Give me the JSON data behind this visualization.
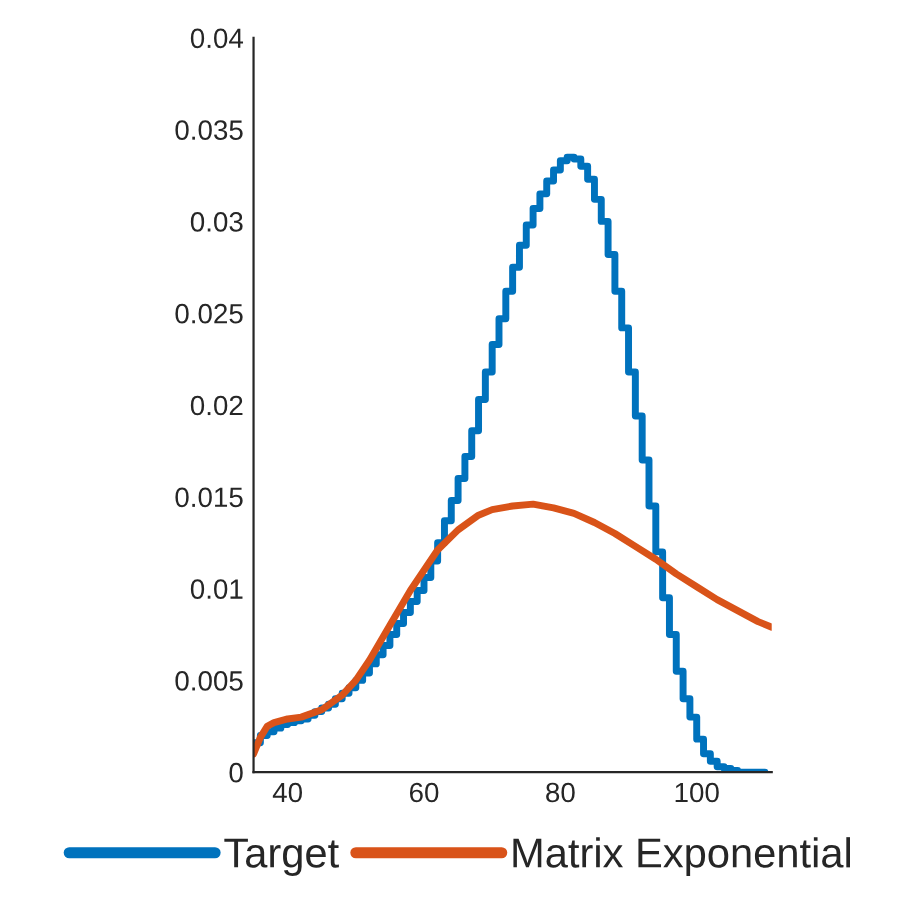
{
  "chart_data": {
    "type": "line",
    "xlim": [
      35,
      111
    ],
    "xticks": [
      40,
      60,
      80,
      100
    ],
    "ylim": [
      0,
      0.04
    ],
    "yticks": [
      0,
      0.005,
      0.01,
      0.015,
      0.02,
      0.025,
      0.03,
      0.035,
      0.04
    ],
    "grid": false,
    "legend": "bottom",
    "series": [
      {
        "name": "Target",
        "type": "step",
        "color": "#0072bd",
        "x": [
          35,
          36,
          37,
          38,
          39,
          40,
          41,
          42,
          43,
          44,
          45,
          46,
          47,
          48,
          49,
          50,
          51,
          52,
          53,
          54,
          55,
          56,
          57,
          58,
          59,
          60,
          61,
          62,
          63,
          64,
          65,
          66,
          67,
          68,
          69,
          70,
          71,
          72,
          73,
          74,
          75,
          76,
          77,
          78,
          79,
          80,
          81,
          82,
          83,
          84,
          85,
          86,
          87,
          88,
          89,
          90,
          91,
          92,
          93,
          94,
          95,
          96,
          97,
          98,
          99,
          100,
          101,
          102,
          103,
          104,
          105,
          106,
          107,
          108,
          109,
          110
        ],
        "values": [
          0.0016,
          0.002,
          0.0022,
          0.0024,
          0.0026,
          0.0027,
          0.0028,
          0.0029,
          0.0031,
          0.0033,
          0.0035,
          0.0037,
          0.004,
          0.0043,
          0.0046,
          0.005,
          0.0054,
          0.0059,
          0.0064,
          0.0069,
          0.0075,
          0.0081,
          0.0087,
          0.0093,
          0.0099,
          0.0106,
          0.0115,
          0.0125,
          0.0137,
          0.0148,
          0.016,
          0.0172,
          0.0186,
          0.0203,
          0.0218,
          0.0233,
          0.0247,
          0.0262,
          0.0275,
          0.0287,
          0.0298,
          0.0307,
          0.0315,
          0.0322,
          0.0328,
          0.0333,
          0.0335,
          0.0334,
          0.033,
          0.0323,
          0.0312,
          0.03,
          0.0282,
          0.0262,
          0.0242,
          0.0218,
          0.0194,
          0.017,
          0.0145,
          0.012,
          0.0095,
          0.0075,
          0.0055,
          0.004,
          0.003,
          0.0018,
          0.001,
          0.0006,
          0.0003,
          0.0002,
          0.0001,
          0,
          0,
          0,
          0,
          0
        ]
      },
      {
        "name": "Matrix Exponential",
        "color": "#d95319",
        "x": [
          35,
          36,
          37,
          38,
          40,
          42,
          45,
          48,
          50,
          52,
          55,
          58,
          60,
          62,
          65,
          68,
          70,
          73,
          76,
          79,
          82,
          85,
          88,
          91,
          94,
          97,
          100,
          103,
          106,
          109,
          111
        ],
        "values": [
          0.001,
          0.0019,
          0.0025,
          0.0027,
          0.0029,
          0.003,
          0.0034,
          0.0042,
          0.005,
          0.0061,
          0.008,
          0.0099,
          0.011,
          0.0121,
          0.0132,
          0.014,
          0.0143,
          0.0145,
          0.0146,
          0.0144,
          0.0141,
          0.0136,
          0.013,
          0.0123,
          0.0116,
          0.0108,
          0.0101,
          0.0094,
          0.0088,
          0.0082,
          0.0079
        ]
      }
    ]
  }
}
